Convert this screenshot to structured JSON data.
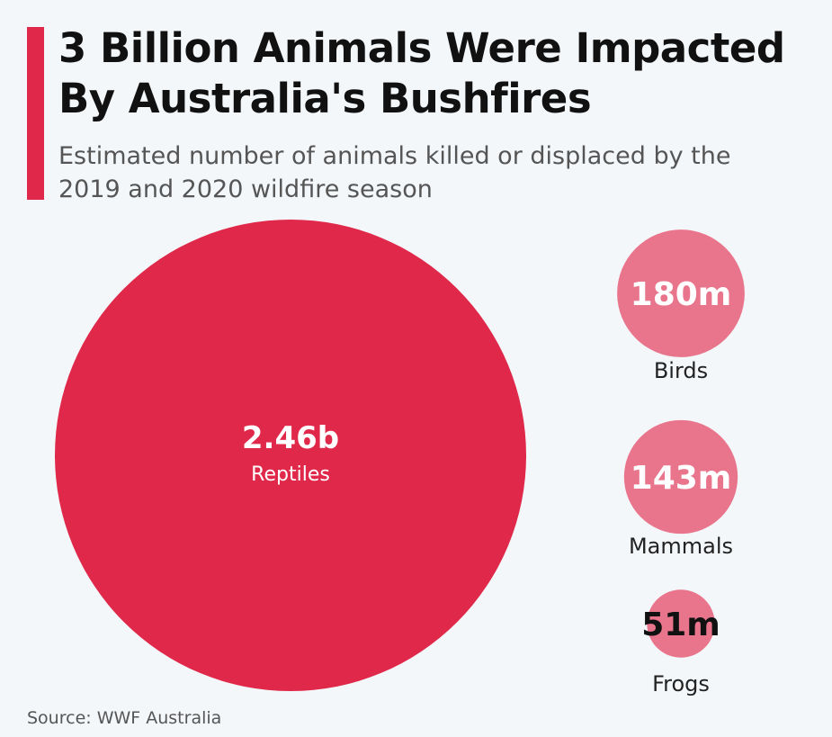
{
  "title": "3 Billion Animals Were Impacted By Australia's Bushfires",
  "subtitle": "Estimated number of animals killed or displaced by the 2019 and 2020 wildfire season",
  "source": "Source: WWF Australia",
  "colors": {
    "accent": "#e0294a",
    "primary_bubble": "#e0294a",
    "secondary_bubble": "#e9758c",
    "background": "#f4f7fa"
  },
  "chart_data": {
    "type": "bubble",
    "unit": "animals",
    "items": [
      {
        "category": "Reptiles",
        "value": 2460000000,
        "label": "2.46b"
      },
      {
        "category": "Birds",
        "value": 180000000,
        "label": "180m"
      },
      {
        "category": "Mammals",
        "value": 143000000,
        "label": "143m"
      },
      {
        "category": "Frogs",
        "value": 51000000,
        "label": "51m"
      }
    ]
  }
}
